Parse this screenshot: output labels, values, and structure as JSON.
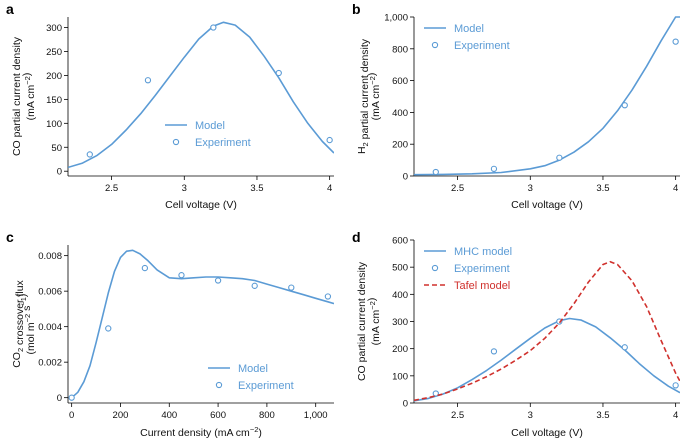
{
  "colors": {
    "model": "#5b9bd5",
    "experiment": "#5b9bd5",
    "tafel": "#d0312d",
    "axis": "#000000",
    "text": "#111111"
  },
  "chart_data": [
    {
      "panel": "a",
      "type": "line",
      "xlabel": "Cell voltage (V)",
      "ylabel_lines": [
        "CO partial current density",
        "(mA cm",
        "−2",
        ")"
      ],
      "xlim": [
        2.2,
        4.03
      ],
      "ylim": [
        -10,
        322
      ],
      "xticks": [
        2.5,
        3,
        3.5,
        4
      ],
      "xtick_labels": [
        "2.5",
        "3",
        "3.5",
        "4"
      ],
      "yticks": [
        0,
        50,
        100,
        150,
        200,
        250,
        300
      ],
      "ytick_labels": [
        "0",
        "50",
        "100",
        "150",
        "200",
        "250",
        "300"
      ],
      "legend": [
        "Model",
        "Experiment"
      ],
      "legend_position": "center-right",
      "series": [
        {
          "name": "Model",
          "style": "line",
          "x": [
            2.2,
            2.3,
            2.4,
            2.5,
            2.6,
            2.7,
            2.8,
            2.9,
            3.0,
            3.1,
            3.2,
            3.27,
            3.35,
            3.45,
            3.55,
            3.65,
            3.75,
            3.85,
            3.95,
            4.03
          ],
          "y": [
            8,
            17,
            33,
            56,
            86,
            120,
            158,
            198,
            238,
            276,
            303,
            311,
            305,
            280,
            240,
            195,
            145,
            100,
            62,
            38
          ]
        },
        {
          "name": "Experiment",
          "style": "marker",
          "x": [
            2.35,
            2.75,
            3.2,
            3.65,
            4.0
          ],
          "y": [
            35,
            190,
            300,
            205,
            65
          ]
        }
      ]
    },
    {
      "panel": "b",
      "type": "line",
      "xlabel": "Cell voltage (V)",
      "ylabel_lines": [
        "H",
        "2",
        " partial current density",
        "(mA cm",
        "−2",
        ")"
      ],
      "xlim": [
        2.2,
        4.03
      ],
      "ylim": [
        0,
        1000
      ],
      "xticks": [
        2.5,
        3,
        3.5,
        4
      ],
      "xtick_labels": [
        "2.5",
        "3",
        "3.5",
        "4"
      ],
      "yticks": [
        0,
        200,
        400,
        600,
        800,
        1000
      ],
      "ytick_labels": [
        "0",
        "200",
        "400",
        "600",
        "800",
        "1,000"
      ],
      "legend": [
        "Model",
        "Experiment"
      ],
      "legend_position": "top-left",
      "series": [
        {
          "name": "Model",
          "style": "line",
          "x": [
            2.2,
            2.4,
            2.6,
            2.8,
            3.0,
            3.1,
            3.2,
            3.3,
            3.4,
            3.5,
            3.6,
            3.7,
            3.8,
            3.9,
            4.0,
            4.03
          ],
          "y": [
            8,
            10,
            14,
            22,
            45,
            65,
            100,
            150,
            215,
            300,
            410,
            540,
            690,
            850,
            1000,
            1000
          ]
        },
        {
          "name": "Experiment",
          "style": "marker",
          "x": [
            2.35,
            2.75,
            3.2,
            3.65,
            4.0
          ],
          "y": [
            25,
            45,
            115,
            445,
            845
          ]
        }
      ]
    },
    {
      "panel": "c",
      "type": "line",
      "xlabel": "Current density (mA cm−2)",
      "ylabel_lines": [
        "CO",
        "2",
        " crossover flux",
        "(mol m",
        "−2",
        " s",
        "−1",
        ")"
      ],
      "xlim": [
        -15,
        1075
      ],
      "ylim": [
        -0.0003,
        0.0086
      ],
      "xticks": [
        0,
        200,
        400,
        600,
        800,
        1000
      ],
      "xtick_labels": [
        "0",
        "200",
        "400",
        "600",
        "800",
        "1,000"
      ],
      "yticks": [
        0,
        0.002,
        0.004,
        0.006,
        0.008
      ],
      "ytick_labels": [
        "0",
        "0.002",
        "0.004",
        "0.006",
        "0.008"
      ],
      "legend": [
        "Model",
        "Experiment"
      ],
      "legend_position": "bottom-right",
      "series": [
        {
          "name": "Model",
          "style": "line",
          "x": [
            0,
            25,
            50,
            75,
            100,
            125,
            150,
            175,
            200,
            225,
            250,
            280,
            310,
            350,
            400,
            450,
            500,
            550,
            600,
            650,
            700,
            750,
            800,
            850,
            900,
            950,
            1000,
            1050,
            1075
          ],
          "y": [
            0,
            0.0003,
            0.0009,
            0.0018,
            0.0031,
            0.0045,
            0.0059,
            0.0071,
            0.0079,
            0.00825,
            0.0083,
            0.0081,
            0.00775,
            0.0072,
            0.00675,
            0.0067,
            0.00675,
            0.0068,
            0.0068,
            0.00675,
            0.0067,
            0.0066,
            0.0064,
            0.0062,
            0.006,
            0.0058,
            0.0056,
            0.0054,
            0.0053
          ]
        },
        {
          "name": "Experiment",
          "style": "marker",
          "x": [
            0,
            150,
            300,
            450,
            600,
            750,
            900,
            1050
          ],
          "y": [
            0,
            0.0039,
            0.0073,
            0.0069,
            0.0066,
            0.0063,
            0.0062,
            0.0057
          ]
        }
      ]
    },
    {
      "panel": "d",
      "type": "line",
      "xlabel": "Cell voltage (V)",
      "ylabel_lines": [
        "CO partial current density",
        "(mA cm",
        "−2",
        ")"
      ],
      "xlim": [
        2.2,
        4.03
      ],
      "ylim": [
        0,
        600
      ],
      "xticks": [
        2.5,
        3,
        3.5,
        4
      ],
      "xtick_labels": [
        "2.5",
        "3",
        "3.5",
        "4"
      ],
      "yticks": [
        0,
        100,
        200,
        300,
        400,
        500,
        600
      ],
      "ytick_labels": [
        "0",
        "100",
        "200",
        "300",
        "400",
        "500",
        "600"
      ],
      "legend": [
        "MHC model",
        "Experiment",
        "Tafel model"
      ],
      "legend_position": "top-left",
      "series": [
        {
          "name": "MHC model",
          "style": "line",
          "x": [
            2.2,
            2.3,
            2.4,
            2.5,
            2.6,
            2.7,
            2.8,
            2.9,
            3.0,
            3.1,
            3.2,
            3.27,
            3.35,
            3.45,
            3.55,
            3.65,
            3.75,
            3.85,
            3.95,
            4.03
          ],
          "y": [
            8,
            17,
            33,
            56,
            86,
            120,
            158,
            198,
            238,
            276,
            303,
            311,
            305,
            280,
            240,
            195,
            145,
            100,
            62,
            38
          ]
        },
        {
          "name": "Experiment",
          "style": "marker",
          "x": [
            2.35,
            2.75,
            3.2,
            3.65,
            4.0
          ],
          "y": [
            35,
            190,
            300,
            205,
            65
          ]
        },
        {
          "name": "Tafel model",
          "style": "dashed",
          "x": [
            2.2,
            2.3,
            2.4,
            2.5,
            2.6,
            2.7,
            2.8,
            2.9,
            3.0,
            3.1,
            3.2,
            3.3,
            3.4,
            3.5,
            3.55,
            3.6,
            3.7,
            3.8,
            3.9,
            4.0,
            4.03
          ],
          "y": [
            10,
            20,
            33,
            52,
            73,
            97,
            125,
            157,
            193,
            238,
            295,
            365,
            445,
            510,
            520,
            510,
            450,
            355,
            230,
            110,
            80
          ]
        }
      ]
    }
  ]
}
